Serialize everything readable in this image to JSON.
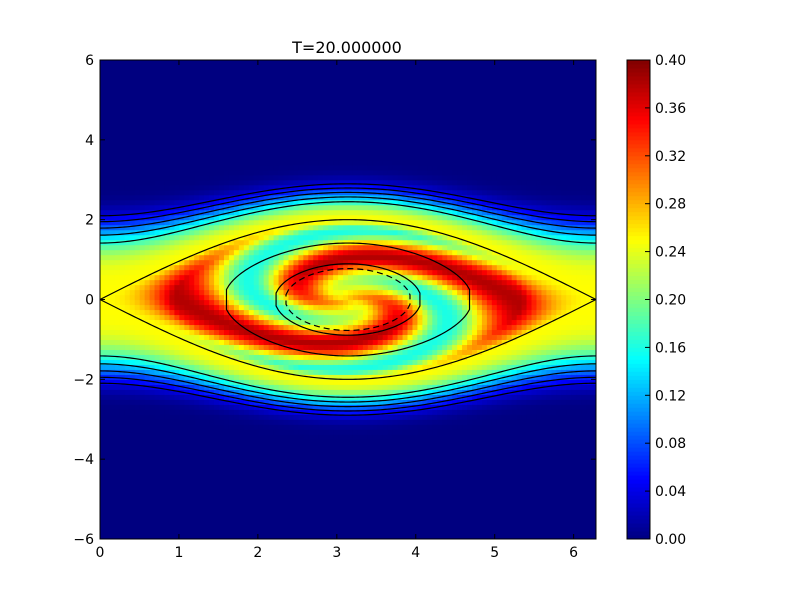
{
  "chart_data": {
    "type": "heatmap",
    "title": "T=20.000000",
    "xlabel": "",
    "ylabel": "",
    "xlim": [
      0,
      6.2832
    ],
    "ylim": [
      -6,
      6
    ],
    "x_ticks": [
      0,
      1,
      2,
      3,
      4,
      5,
      6
    ],
    "x_tick_labels": [
      "0",
      "1",
      "2",
      "3",
      "4",
      "5",
      "6"
    ],
    "y_ticks": [
      -6,
      -4,
      -2,
      0,
      2,
      4,
      6
    ],
    "y_tick_labels": [
      "−6",
      "−4",
      "−2",
      "0",
      "2",
      "4",
      "6"
    ],
    "colormap": "jet",
    "colorbar": {
      "vmin": 0.0,
      "vmax": 0.4,
      "ticks": [
        0.0,
        0.04,
        0.08,
        0.12,
        0.16,
        0.2,
        0.24,
        0.28,
        0.32,
        0.36,
        0.4
      ],
      "tick_labels": [
        "0.00",
        "0.04",
        "0.08",
        "0.12",
        "0.16",
        "0.20",
        "0.24",
        "0.28",
        "0.32",
        "0.36",
        "0.40"
      ]
    },
    "field": {
      "description_free": true,
      "center_x": 3.1416,
      "separatrix_peak_v": 2.0,
      "background_value": 0.0,
      "outer_band_value": 0.25,
      "inner_peak_value": 0.4
    },
    "contours": {
      "solid_levels": [
        -1.6,
        -1.0,
        0.0,
        1.0,
        1.3,
        1.6,
        1.9,
        2.2
      ],
      "dashed_levels": [
        -1.7
      ],
      "color": "#000000"
    }
  }
}
